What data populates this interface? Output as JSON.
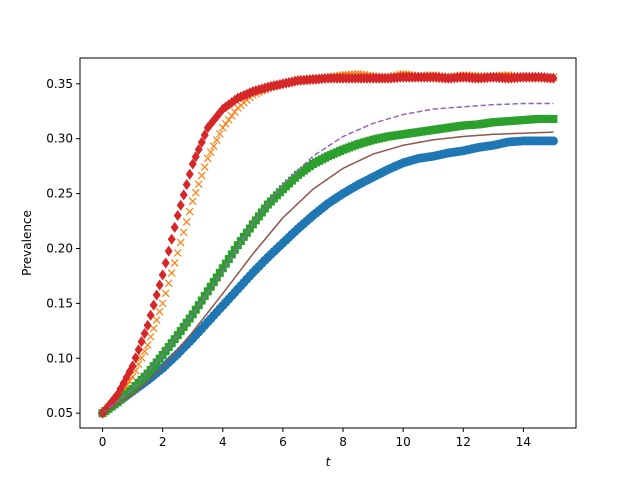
{
  "chart_data": {
    "type": "line",
    "title": "",
    "xlabel": "t",
    "ylabel": "Prevalence",
    "xlim": [
      -0.75,
      15.75
    ],
    "ylim": [
      0.0365,
      0.3735
    ],
    "xticks": [
      0,
      2,
      4,
      6,
      8,
      10,
      12,
      14
    ],
    "yticks": [
      0.05,
      0.1,
      0.15,
      0.2,
      0.25,
      0.3,
      0.35
    ],
    "xtick_labels": [
      "0",
      "2",
      "4",
      "6",
      "8",
      "10",
      "12",
      "14"
    ],
    "ytick_labels": [
      "0.05",
      "0.10",
      "0.15",
      "0.20",
      "0.25",
      "0.30",
      "0.35"
    ],
    "grid": false,
    "legend": "none",
    "series": [
      {
        "marker": "circle",
        "color": "#1f77b4",
        "x": [
          0,
          0.5,
          1,
          1.5,
          2,
          2.5,
          3,
          3.5,
          4,
          4.5,
          5,
          5.5,
          6,
          6.5,
          7,
          7.5,
          8,
          8.5,
          9,
          9.5,
          10,
          10.5,
          11,
          11.5,
          12,
          12.5,
          13,
          13.5,
          14,
          14.5,
          15
        ],
        "y": [
          0.05,
          0.06,
          0.07,
          0.08,
          0.091,
          0.104,
          0.118,
          0.133,
          0.148,
          0.163,
          0.178,
          0.192,
          0.205,
          0.218,
          0.23,
          0.241,
          0.25,
          0.258,
          0.265,
          0.272,
          0.278,
          0.282,
          0.284,
          0.287,
          0.289,
          0.292,
          0.294,
          0.297,
          0.298,
          0.298,
          0.298
        ]
      },
      {
        "marker": "x",
        "color": "#ff7f0e",
        "x": [
          0,
          0.5,
          1,
          1.5,
          2,
          2.5,
          3,
          3.5,
          4,
          4.5,
          5,
          5.5,
          6,
          6.5,
          7,
          7.5,
          8,
          8.5,
          9,
          9.5,
          10,
          10.5,
          11,
          11.5,
          12,
          12.5,
          13,
          13.5,
          14,
          14.5,
          15
        ],
        "y": [
          0.05,
          0.063,
          0.083,
          0.112,
          0.15,
          0.196,
          0.243,
          0.282,
          0.31,
          0.328,
          0.34,
          0.346,
          0.35,
          0.352,
          0.355,
          0.356,
          0.358,
          0.359,
          0.357,
          0.356,
          0.359,
          0.357,
          0.358,
          0.356,
          0.358,
          0.357,
          0.357,
          0.358,
          0.356,
          0.357,
          0.356
        ]
      },
      {
        "marker": "square",
        "color": "#2ca02c",
        "x": [
          0,
          0.5,
          1,
          1.5,
          2,
          2.5,
          3,
          3.5,
          4,
          4.5,
          5,
          5.5,
          6,
          6.5,
          7,
          7.5,
          8,
          8.5,
          9,
          9.5,
          10,
          10.5,
          11,
          11.5,
          12,
          12.5,
          13,
          13.5,
          14,
          14.5,
          15
        ],
        "y": [
          0.05,
          0.06,
          0.072,
          0.086,
          0.103,
          0.121,
          0.14,
          0.161,
          0.182,
          0.203,
          0.222,
          0.24,
          0.254,
          0.267,
          0.277,
          0.284,
          0.29,
          0.295,
          0.299,
          0.302,
          0.304,
          0.306,
          0.308,
          0.31,
          0.312,
          0.313,
          0.315,
          0.316,
          0.317,
          0.318,
          0.318
        ]
      },
      {
        "marker": "diamond",
        "color": "#d62728",
        "x": [
          0,
          0.5,
          1,
          1.5,
          2,
          2.5,
          3,
          3.5,
          4,
          4.5,
          5,
          5.5,
          6,
          6.5,
          7,
          7.5,
          8,
          8.5,
          9,
          9.5,
          10,
          10.5,
          11,
          11.5,
          12,
          12.5,
          13,
          13.5,
          14,
          14.5,
          15
        ],
        "y": [
          0.05,
          0.067,
          0.093,
          0.13,
          0.176,
          0.23,
          0.277,
          0.31,
          0.327,
          0.337,
          0.343,
          0.347,
          0.35,
          0.353,
          0.354,
          0.355,
          0.355,
          0.355,
          0.355,
          0.355,
          0.356,
          0.356,
          0.356,
          0.355,
          0.356,
          0.355,
          0.356,
          0.355,
          0.356,
          0.356,
          0.355
        ]
      },
      {
        "line": "dashed",
        "color": "#9467bd",
        "x": [
          0,
          1,
          2,
          3,
          4,
          5,
          6,
          7,
          8,
          9,
          10,
          11,
          12,
          13,
          14,
          15
        ],
        "y": [
          0.05,
          0.072,
          0.103,
          0.14,
          0.18,
          0.223,
          0.258,
          0.284,
          0.302,
          0.314,
          0.322,
          0.327,
          0.329,
          0.331,
          0.332,
          0.332
        ]
      },
      {
        "line": "solid",
        "color": "#8c564b",
        "x": [
          0,
          1,
          2,
          3,
          4,
          5,
          6,
          7,
          8,
          9,
          10,
          11,
          12,
          13,
          14,
          15
        ],
        "y": [
          0.05,
          0.067,
          0.092,
          0.124,
          0.159,
          0.195,
          0.228,
          0.254,
          0.273,
          0.286,
          0.294,
          0.299,
          0.302,
          0.304,
          0.305,
          0.306
        ]
      }
    ]
  }
}
